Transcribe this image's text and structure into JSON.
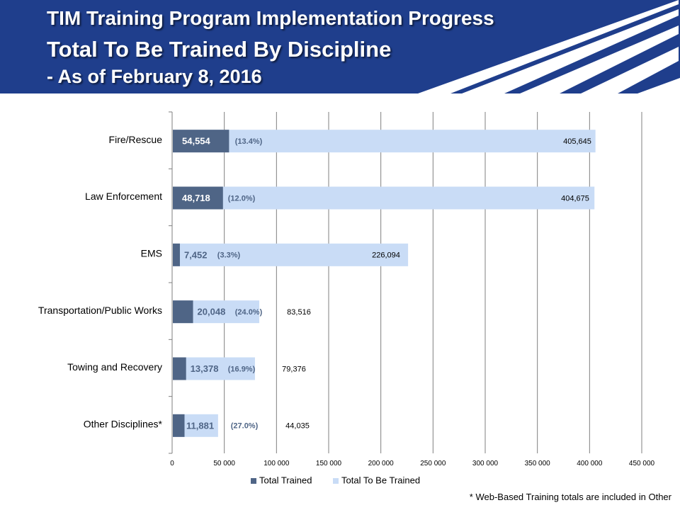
{
  "header": {
    "title_line1": "TIM Training Program Implementation Progress",
    "title_line2": "Total To Be Trained By Discipline",
    "title_line3": " - As of February 8, 2016"
  },
  "colors": {
    "header_bg": "#1f3e8c",
    "trained": "#4f6586",
    "to_be_trained": "#c9dcf6",
    "trained_label": "#ffffff",
    "pct_label": "#4f6586"
  },
  "chart_data": {
    "type": "bar",
    "orientation": "horizontal",
    "stacked": "overlay",
    "categories": [
      "Fire/Rescue",
      "Law Enforcement",
      "EMS",
      "Transportation/Public Works",
      "Towing and Recovery",
      "Other Disciplines*"
    ],
    "series": [
      {
        "name": "Total Trained",
        "values": [
          54554,
          48718,
          7452,
          20048,
          13378,
          11881
        ],
        "labels": [
          "54,554",
          "48,718",
          "7,452",
          "20,048",
          "13,378",
          "11,881"
        ]
      },
      {
        "name": "Total To Be Trained",
        "values": [
          405645,
          404675,
          226094,
          83516,
          79376,
          44035
        ],
        "labels": [
          "405,645",
          "404,675",
          "226,094",
          "83,516",
          "79,376",
          "44,035"
        ]
      }
    ],
    "percent_labels": [
      "(13.4%)",
      "(12.0%)",
      "(3.3%)",
      "(24.0%)",
      "(16.9%)",
      "(27.0%)"
    ],
    "x_ticks": [
      0,
      50000,
      100000,
      150000,
      200000,
      250000,
      300000,
      350000,
      400000,
      450000
    ],
    "x_tick_labels": [
      "0",
      "50 000",
      "100 000",
      "150 000",
      "200 000",
      "250 000",
      "300 000",
      "350 000",
      "400 000",
      "450 000"
    ],
    "xlim": [
      0,
      450000
    ],
    "grid": true,
    "legend_position": "bottom"
  },
  "footnote": "* Web-Based Training totals are included in Other"
}
